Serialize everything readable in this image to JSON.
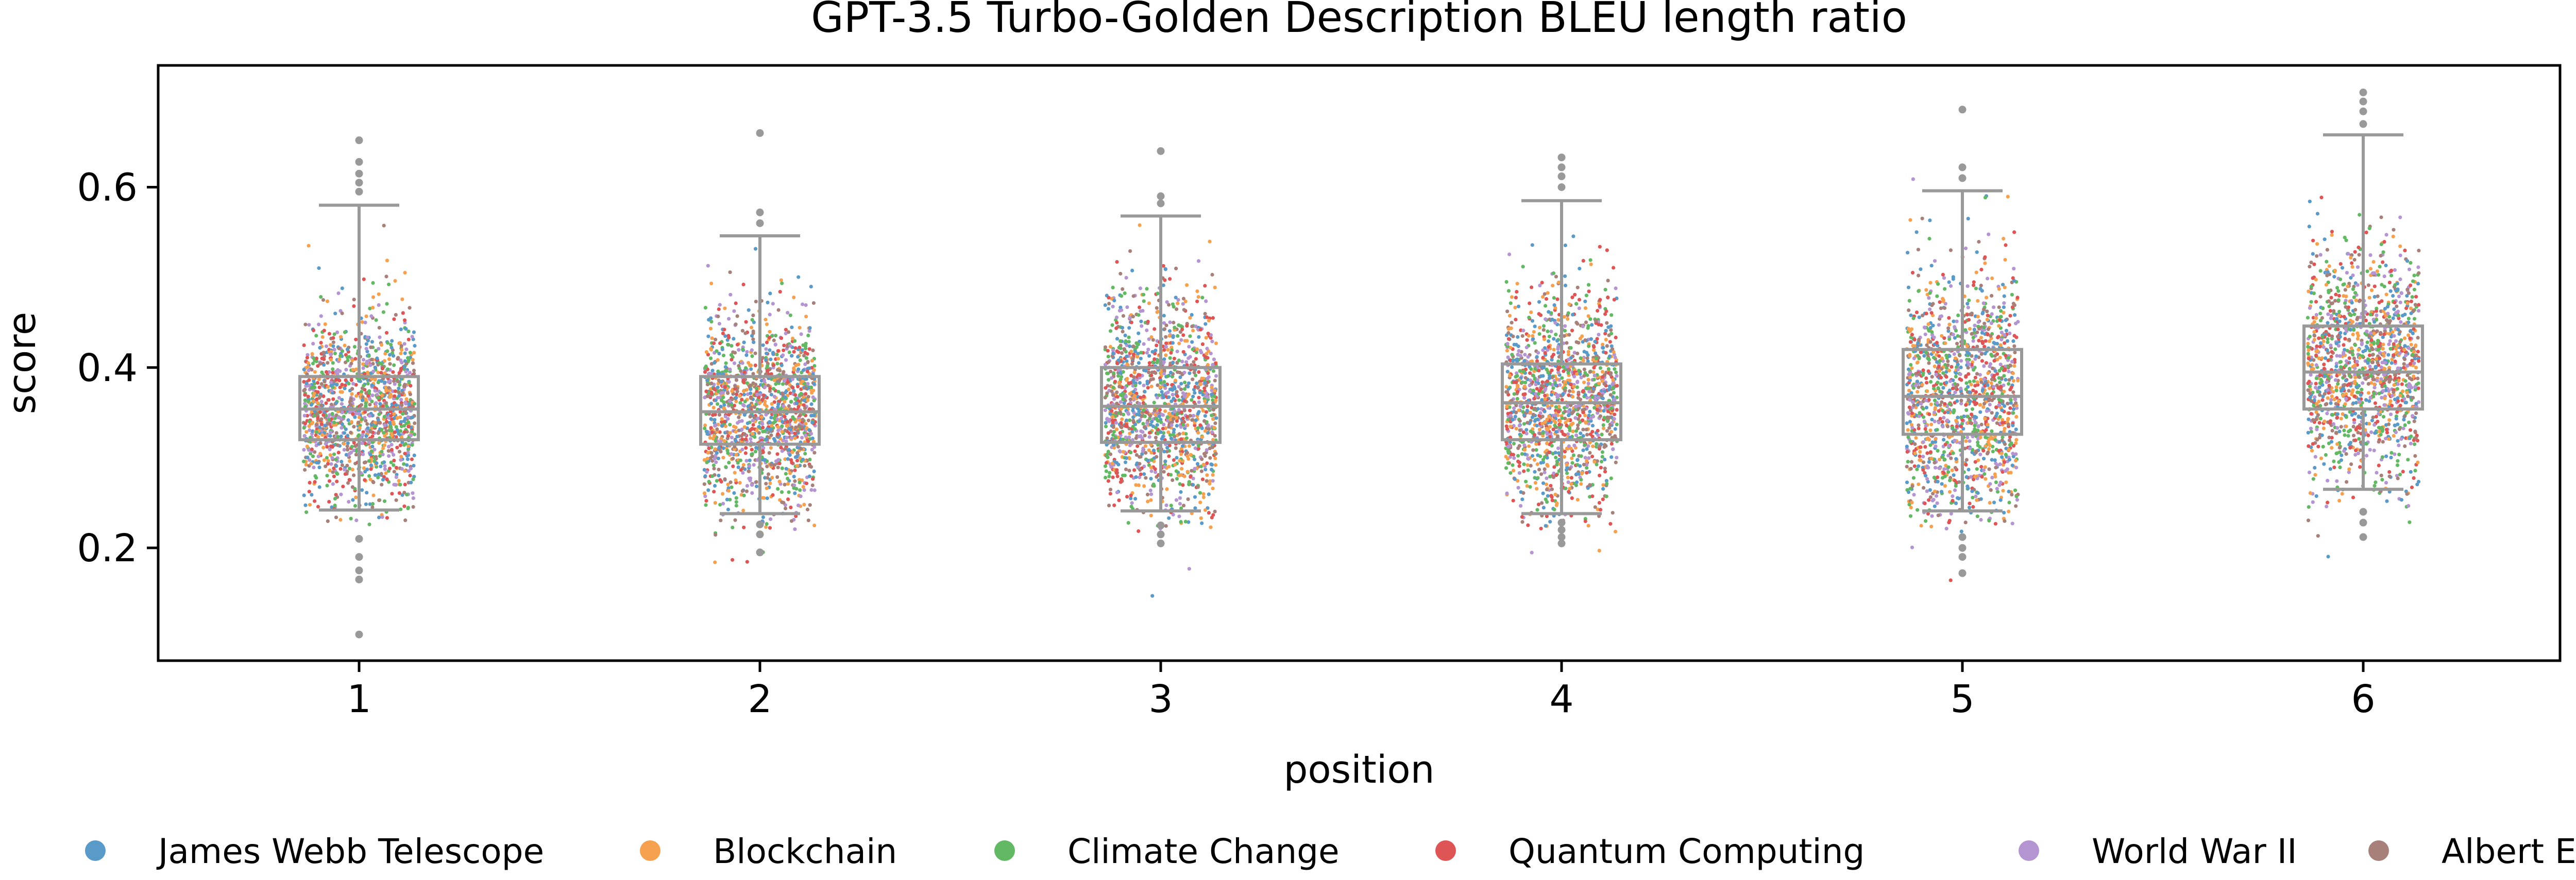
{
  "chart_data": {
    "type": "box",
    "title": "GPT-3.5 Turbo-Golden Description BLEU length ratio",
    "xlabel": "position",
    "ylabel": "score",
    "categories": [
      "1",
      "2",
      "3",
      "4",
      "5",
      "6"
    ],
    "ylim": [
      0.075,
      0.735
    ],
    "yticks": [
      0.2,
      0.4,
      0.6
    ],
    "ytick_labels": [
      "0.2",
      "0.4",
      "0.6"
    ],
    "grid": false,
    "legend_position": "bottom",
    "box_color": "#999999",
    "boxes": [
      {
        "category": "1",
        "whisker_low": 0.242,
        "q1": 0.32,
        "median": 0.354,
        "q3": 0.39,
        "whisker_high": 0.58,
        "outliers": [
          0.104,
          0.165,
          0.175,
          0.19,
          0.21,
          0.595,
          0.605,
          0.615,
          0.628,
          0.652
        ]
      },
      {
        "category": "2",
        "whisker_low": 0.238,
        "q1": 0.315,
        "median": 0.351,
        "q3": 0.39,
        "whisker_high": 0.546,
        "outliers": [
          0.195,
          0.215,
          0.226,
          0.56,
          0.572,
          0.66
        ]
      },
      {
        "category": "3",
        "whisker_low": 0.241,
        "q1": 0.317,
        "median": 0.357,
        "q3": 0.4,
        "whisker_high": 0.568,
        "outliers": [
          0.205,
          0.215,
          0.225,
          0.582,
          0.59,
          0.64
        ]
      },
      {
        "category": "4",
        "whisker_low": 0.238,
        "q1": 0.32,
        "median": 0.361,
        "q3": 0.404,
        "whisker_high": 0.585,
        "outliers": [
          0.205,
          0.212,
          0.22,
          0.228,
          0.6,
          0.612,
          0.622,
          0.633
        ]
      },
      {
        "category": "5",
        "whisker_low": 0.241,
        "q1": 0.326,
        "median": 0.368,
        "q3": 0.42,
        "whisker_high": 0.596,
        "outliers": [
          0.172,
          0.19,
          0.2,
          0.212,
          0.61,
          0.622,
          0.686
        ]
      },
      {
        "category": "6",
        "whisker_low": 0.265,
        "q1": 0.354,
        "median": 0.395,
        "q3": 0.446,
        "whisker_high": 0.658,
        "outliers": [
          0.212,
          0.228,
          0.24,
          0.67,
          0.684,
          0.695,
          0.705
        ]
      }
    ],
    "series": [
      {
        "name": "James Webb Telescope",
        "color": "#5a9ac9"
      },
      {
        "name": "Blockchain",
        "color": "#f6a150"
      },
      {
        "name": "Climate Change",
        "color": "#63b963"
      },
      {
        "name": "Quantum Computing",
        "color": "#dd5555"
      },
      {
        "name": "World War II",
        "color": "#b495d2"
      },
      {
        "name": "Albert Einstein",
        "color": "#a8807a"
      }
    ]
  }
}
